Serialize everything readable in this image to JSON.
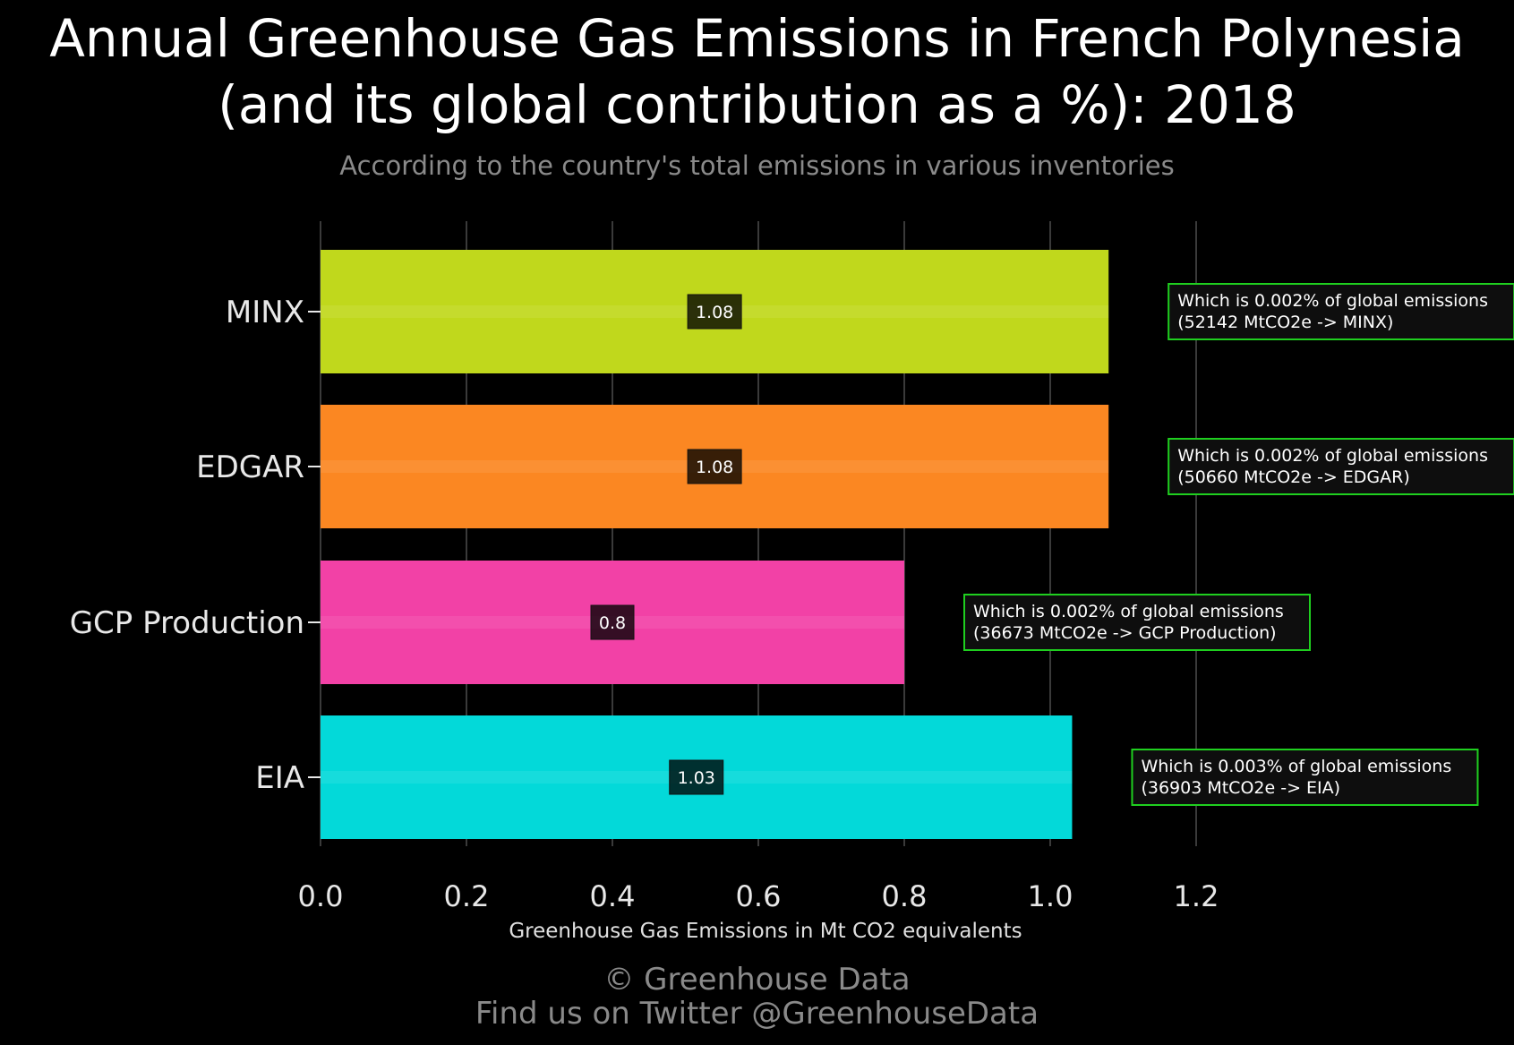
{
  "title_line1": "Annual Greenhouse Gas Emissions in French Polynesia",
  "title_line2": "(and its global contribution as a %): 2018",
  "subtitle": "According to the country's total emissions in various inventories",
  "credit_line1": "© Greenhouse Data",
  "credit_line2": "Find us on Twitter @GreenhouseData",
  "chart_data": {
    "type": "bar",
    "orientation": "horizontal",
    "xlabel": "Greenhouse Gas Emissions in Mt CO2 equivalents",
    "xlim": [
      0,
      1.2
    ],
    "xticks": [
      "0.0",
      "0.2",
      "0.4",
      "0.6",
      "0.8",
      "1.0",
      "1.2"
    ],
    "grid": true,
    "categories": [
      "MINX",
      "EDGAR",
      "GCP Production",
      "EIA"
    ],
    "values": [
      1.08,
      1.08,
      0.8,
      1.03
    ],
    "value_labels": [
      "1.08",
      "1.08",
      "0.8",
      "1.03"
    ],
    "colors": [
      "#c0d81c",
      "#fb8722",
      "#f241a6",
      "#03d9d9"
    ],
    "annotations": [
      {
        "line1": "Which is 0.002% of global emissions",
        "line2": "(52142 MtCO2e -> MINX)"
      },
      {
        "line1": "Which is 0.002% of global emissions",
        "line2": "(50660 MtCO2e -> EDGAR)"
      },
      {
        "line1": "Which is 0.002% of global emissions",
        "line2": "(36673 MtCO2e -> GCP Production)"
      },
      {
        "line1": "Which is 0.003% of global emissions",
        "line2": "(36903 MtCO2e -> EIA)"
      }
    ],
    "annotation_border_color": "#1fcf1f"
  }
}
